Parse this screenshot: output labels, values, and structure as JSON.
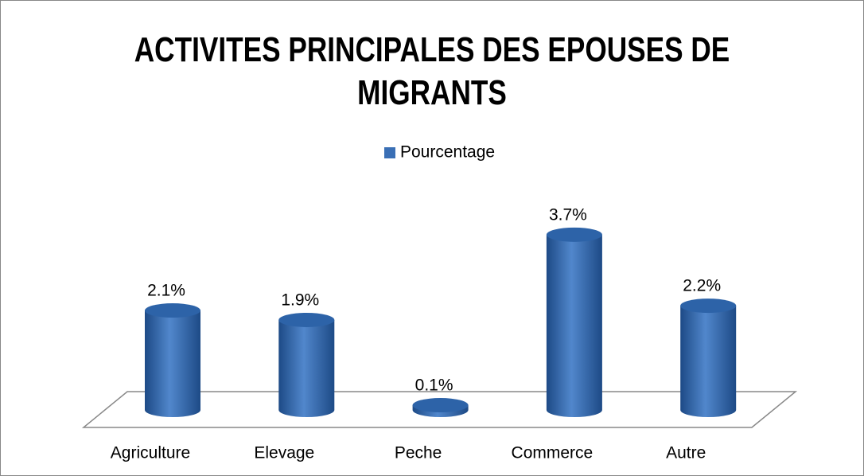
{
  "chart_data": {
    "type": "bar3d",
    "title": "ACTIVITES PRINCIPALES DES EPOUSES DE MIGRANTS",
    "categories": [
      "Agriculture",
      "Elevage",
      "Peche",
      "Commerce",
      "Autre"
    ],
    "series": [
      {
        "name": "Pourcentage",
        "color": "#3a6fb5",
        "values": [
          2.1,
          1.9,
          0.1,
          3.7,
          2.2
        ],
        "value_labels": [
          "2.1%",
          "1.9%",
          "0.1%",
          "3.7%",
          "2.2%"
        ]
      }
    ]
  }
}
